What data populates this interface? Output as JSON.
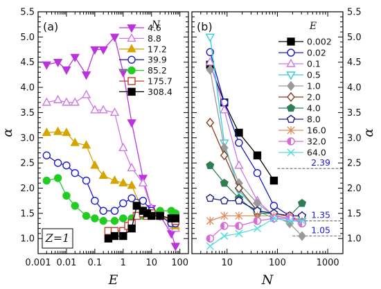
{
  "chart_data": [
    {
      "panel": "(a)",
      "type": "line",
      "xlabel": "E",
      "ylabel": "α",
      "xscale": "log",
      "xlim": [
        0.001,
        200
      ],
      "ylim": [
        0.7,
        5.5
      ],
      "xticks": [
        {
          "v": 0.001,
          "label": "0.001"
        },
        {
          "v": 0.01,
          "label": "0.01"
        },
        {
          "v": 0.1,
          "label": "0.1"
        },
        {
          "v": 1,
          "label": "1"
        },
        {
          "v": 10,
          "label": "10"
        },
        {
          "v": 100,
          "label": "100"
        }
      ],
      "yticks": [
        {
          "v": 1.0,
          "label": "1.0"
        },
        {
          "v": 1.5,
          "label": "1.5"
        },
        {
          "v": 2.0,
          "label": "2.0"
        },
        {
          "v": 2.5,
          "label": "2.5"
        },
        {
          "v": 3.0,
          "label": "3.0"
        },
        {
          "v": 3.5,
          "label": "3.5"
        },
        {
          "v": 4.0,
          "label": "4.0"
        },
        {
          "v": 4.5,
          "label": "4.5"
        },
        {
          "v": 5.0,
          "label": "5.0"
        },
        {
          "v": 5.5,
          "label": "5.5"
        }
      ],
      "legend_title": "N",
      "legend_position": "top-right",
      "annotation": "Z=1",
      "series": [
        {
          "name": "4.6",
          "color": "#bb33dd",
          "marker": "triangle-down",
          "filled": true,
          "x": [
            0.002,
            0.005,
            0.01,
            0.02,
            0.05,
            0.1,
            0.2,
            0.5,
            1,
            2,
            5,
            10,
            20,
            50,
            70
          ],
          "y": [
            4.45,
            4.5,
            4.35,
            4.6,
            4.25,
            4.75,
            4.75,
            5.0,
            4.3,
            3.3,
            2.2,
            1.6,
            1.45,
            1.1,
            0.85
          ]
        },
        {
          "name": "8.8",
          "color": "#cc77e6",
          "marker": "triangle-up",
          "filled": false,
          "x": [
            0.002,
            0.005,
            0.01,
            0.02,
            0.05,
            0.1,
            0.2,
            0.5,
            1,
            2,
            5,
            10,
            20,
            50,
            70
          ],
          "y": [
            3.7,
            3.75,
            3.7,
            3.7,
            3.85,
            3.55,
            3.55,
            3.5,
            2.8,
            2.4,
            2.1,
            1.6,
            1.5,
            1.25,
            1.2
          ]
        },
        {
          "name": "17.2",
          "color": "#d4a500",
          "marker": "triangle-up",
          "filled": true,
          "x": [
            0.002,
            0.005,
            0.01,
            0.02,
            0.05,
            0.1,
            0.2,
            0.5,
            1,
            2,
            5,
            10,
            20,
            50,
            70
          ],
          "y": [
            3.1,
            3.12,
            3.1,
            2.9,
            2.85,
            2.45,
            2.25,
            2.15,
            2.1,
            2.05,
            1.55,
            1.5,
            1.45,
            1.35,
            1.25
          ]
        },
        {
          "name": "39.9",
          "color": "#1818cc",
          "marker": "circle",
          "filled": false,
          "x": [
            0.002,
            0.005,
            0.01,
            0.02,
            0.05,
            0.1,
            0.2,
            0.5,
            1,
            2,
            5,
            10,
            20,
            50,
            70
          ],
          "y": [
            2.65,
            2.5,
            2.45,
            2.3,
            2.15,
            1.75,
            1.55,
            1.55,
            1.7,
            1.8,
            1.75,
            1.55,
            1.45,
            1.3,
            1.3
          ]
        },
        {
          "name": "85.2",
          "color": "#22cc22",
          "marker": "circle",
          "filled": true,
          "x": [
            0.002,
            0.005,
            0.01,
            0.02,
            0.05,
            0.1,
            0.2,
            0.5,
            1,
            2,
            5,
            10,
            20,
            50,
            70
          ],
          "y": [
            2.15,
            2.2,
            1.85,
            1.65,
            1.45,
            1.4,
            1.35,
            1.35,
            1.4,
            1.4,
            1.45,
            1.5,
            1.55,
            1.55,
            1.5
          ]
        },
        {
          "name": "175.7",
          "color": "#c0392b",
          "marker": "square",
          "filled": false,
          "x": [
            0.3,
            0.5,
            1,
            1.5,
            2,
            3,
            5,
            7,
            10,
            20,
            50,
            70
          ],
          "y": [
            1.15,
            1.15,
            1.15,
            1.25,
            1.3,
            1.45,
            1.5,
            1.45,
            1.5,
            1.45,
            1.4,
            1.35
          ]
        },
        {
          "name": "308.4",
          "color": "#000000",
          "marker": "square",
          "filled": true,
          "x": [
            0.3,
            0.5,
            1,
            2,
            3,
            5,
            7,
            10,
            20,
            50,
            70
          ],
          "y": [
            1.0,
            1.05,
            1.05,
            1.2,
            1.65,
            1.55,
            1.5,
            1.45,
            1.45,
            1.4,
            1.4
          ]
        }
      ]
    },
    {
      "panel": "(b)",
      "type": "line",
      "xlabel": "N",
      "ylabel": "α",
      "xscale": "log",
      "xlim": [
        2,
        2000
      ],
      "ylim": [
        0.7,
        5.5
      ],
      "xticks": [
        {
          "v": 10,
          "label": "10"
        },
        {
          "v": 100,
          "label": "100"
        },
        {
          "v": 1000,
          "label": "1000"
        }
      ],
      "yticks": [
        {
          "v": 1.0,
          "label": "1.0"
        },
        {
          "v": 1.5,
          "label": "1.5"
        },
        {
          "v": 2.0,
          "label": "2.0"
        },
        {
          "v": 2.5,
          "label": "2.5"
        },
        {
          "v": 3.0,
          "label": "3.0"
        },
        {
          "v": 3.5,
          "label": "3.5"
        },
        {
          "v": 4.0,
          "label": "4.0"
        },
        {
          "v": 4.5,
          "label": "4.5"
        },
        {
          "v": 5.0,
          "label": "5.0"
        },
        {
          "v": 5.5,
          "label": "5.5"
        }
      ],
      "legend_title": "E",
      "legend_position": "top-right",
      "reference_lines": [
        {
          "y": 2.39,
          "label": "2.39",
          "x_from": 100
        },
        {
          "y": 1.35,
          "label": "1.35",
          "x_from": 200
        },
        {
          "y": 1.05,
          "label": "1.05",
          "x_from": 200
        }
      ],
      "series": [
        {
          "name": "0.002",
          "color": "#000000",
          "marker": "square",
          "filled": true,
          "x": [
            4.6,
            8.8,
            17.2,
            39.9,
            85.2
          ],
          "y": [
            4.45,
            3.7,
            3.1,
            2.65,
            2.15
          ]
        },
        {
          "name": "0.02",
          "color": "#1818cc",
          "marker": "circle",
          "filled": false,
          "x": [
            4.6,
            8.8,
            17.2,
            39.9,
            85.2,
            175.7,
            308.4
          ],
          "y": [
            4.7,
            3.7,
            2.9,
            2.3,
            1.65,
            1.45,
            1.3
          ]
        },
        {
          "name": "0.1",
          "color": "#cc77e6",
          "marker": "triangle-up",
          "filled": false,
          "x": [
            4.6,
            8.8,
            17.2,
            39.9,
            85.2,
            175.7,
            308.4
          ],
          "y": [
            4.5,
            3.55,
            2.45,
            1.75,
            1.45,
            1.4,
            1.35
          ]
        },
        {
          "name": "0.5",
          "color": "#33ccdd",
          "marker": "triangle-down",
          "filled": false,
          "x": [
            4.6,
            8.8,
            17.2,
            39.9,
            85.2,
            175.7,
            308.4
          ],
          "y": [
            5.0,
            2.9,
            1.95,
            1.55,
            1.4,
            1.35,
            1.35
          ]
        },
        {
          "name": "1.0",
          "color": "#999999",
          "marker": "diamond",
          "filled": true,
          "x": [
            4.6,
            8.8,
            17.2,
            39.9,
            85.2,
            175.7,
            308.4
          ],
          "y": [
            4.35,
            2.8,
            2.1,
            1.7,
            1.45,
            1.3,
            1.05
          ]
        },
        {
          "name": "2.0",
          "color": "#8b3a1a",
          "marker": "diamond",
          "filled": false,
          "x": [
            4.6,
            8.8,
            17.2,
            39.9,
            85.2,
            175.7,
            308.4
          ],
          "y": [
            3.3,
            2.65,
            2.0,
            1.55,
            1.5,
            1.45,
            1.45
          ]
        },
        {
          "name": "4.0",
          "color": "#2e7d55",
          "marker": "pentagon",
          "filled": true,
          "x": [
            4.6,
            8.8,
            17.2,
            39.9,
            85.2,
            175.7,
            308.4
          ],
          "y": [
            2.45,
            2.1,
            1.8,
            1.5,
            1.5,
            1.45,
            1.7
          ]
        },
        {
          "name": "8.0",
          "color": "#1a1a8a",
          "marker": "pentagon",
          "filled": false,
          "x": [
            4.6,
            8.8,
            17.2,
            39.9,
            85.2,
            175.7,
            308.4
          ],
          "y": [
            1.8,
            1.75,
            1.75,
            1.55,
            1.5,
            1.45,
            1.45
          ]
        },
        {
          "name": "16.0",
          "color": "#e08a5a",
          "marker": "asterisk",
          "filled": false,
          "x": [
            4.6,
            8.8,
            17.2,
            39.9,
            85.2,
            175.7,
            308.4
          ],
          "y": [
            1.35,
            1.45,
            1.45,
            1.45,
            1.45,
            1.45,
            1.35
          ]
        },
        {
          "name": "32.0",
          "color": "#d66ad6",
          "marker": "half-circle",
          "filled": false,
          "x": [
            4.6,
            8.8,
            17.2,
            39.9,
            85.2,
            175.7,
            308.4
          ],
          "y": [
            1.0,
            1.25,
            1.25,
            1.35,
            1.4,
            1.4,
            1.3
          ]
        },
        {
          "name": "64.0",
          "color": "#55dde0",
          "marker": "x",
          "filled": false,
          "x": [
            4.6,
            8.8,
            17.2,
            39.9,
            85.2,
            175.7,
            308.4
          ],
          "y": [
            0.85,
            1.05,
            1.1,
            1.2,
            1.4,
            1.35,
            1.35
          ]
        }
      ]
    }
  ]
}
